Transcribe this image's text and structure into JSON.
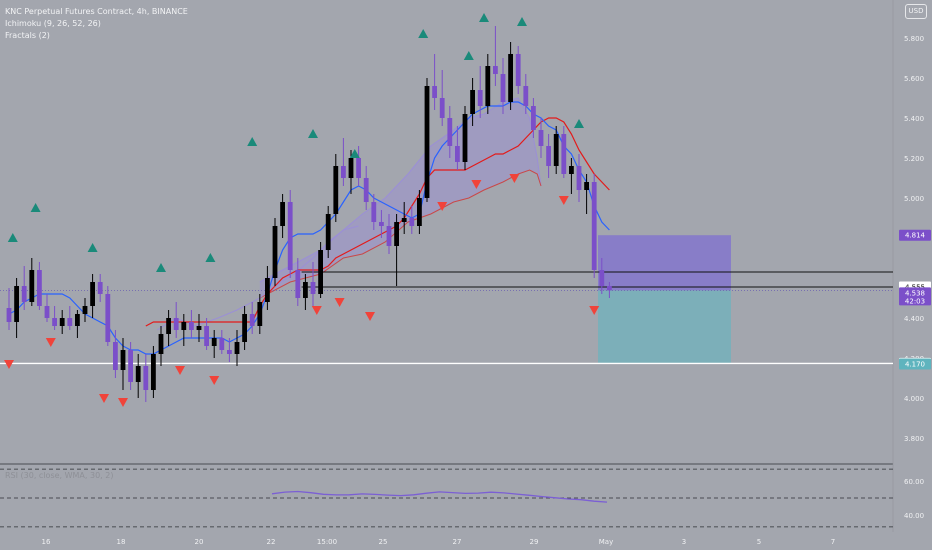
{
  "legend": {
    "symbol": "KNC Perpetual Futures Contract, 4h, BINANCE",
    "ichimoku": "Ichimoku (9, 26, 52, 26)",
    "fractals": "Fractals (2)"
  },
  "currency_button": "USD",
  "colors": {
    "background": "#a3a6ae",
    "bull_candle": "#000000",
    "bear_candle": "#7b4fc9",
    "tenkan": "#2962ff",
    "kijun": "#e31a1a",
    "cloud": "#9b8fd6",
    "fractal_up": "#1a8a7a",
    "fractal_down": "#f0433a",
    "rsi": "#7b5fd4",
    "stop_zone": "#7f6fd0",
    "target_zone": "#6fb2bc"
  },
  "chart_data": {
    "type": "candlestick",
    "ylim": [
      3.72,
      5.96
    ],
    "y_ticks": [
      "5.800",
      "5.600",
      "5.400",
      "5.200",
      "5.000",
      "4.400",
      "4.200",
      "4.000",
      "3.800"
    ],
    "x_ticks": [
      "16",
      "18",
      "20",
      "22",
      "15:00",
      "25",
      "27",
      "29",
      "May",
      "3",
      "5",
      "7"
    ],
    "price_labels": [
      {
        "text": "4.814",
        "value": 4.814,
        "color": "#7b4fc9"
      },
      {
        "text": "4.555",
        "value": 4.555,
        "color": "#ffffff"
      },
      {
        "text": "4.538",
        "sub": "42:03",
        "value": 4.538,
        "color": "#7b4fc9"
      },
      {
        "text": "4.173",
        "value": 4.173,
        "color": "#ffffff"
      },
      {
        "text": "4.170",
        "value": 4.17,
        "color": "#5fb4be"
      }
    ],
    "horizontal_lines": [
      4.173,
      4.555,
      4.63
    ],
    "rsi": {
      "label": "RSI (30, close, WMA, 30, 2)",
      "ticks": [
        "60.00",
        "40.00"
      ],
      "ylim": [
        30,
        70
      ],
      "levels": [
        67,
        50,
        33
      ],
      "values": [
        52.5,
        53.5,
        53.8,
        53.1,
        52.2,
        51.8,
        51.9,
        52.4,
        52.1,
        51.7,
        51.4,
        51.9,
        52.8,
        53.6,
        53.2,
        52.7,
        52.9,
        53.4,
        53.0,
        52.3,
        51.6,
        50.8,
        50.1,
        49.4,
        49.0,
        48.1,
        47.6
      ]
    },
    "candles": [
      [
        4.45,
        4.55,
        4.34,
        4.38
      ],
      [
        4.38,
        4.6,
        4.3,
        4.56
      ],
      [
        4.56,
        4.66,
        4.44,
        4.48
      ],
      [
        4.48,
        4.7,
        4.46,
        4.64
      ],
      [
        4.64,
        4.68,
        4.44,
        4.46
      ],
      [
        4.46,
        4.52,
        4.38,
        4.4
      ],
      [
        4.4,
        4.46,
        4.34,
        4.36
      ],
      [
        4.36,
        4.44,
        4.32,
        4.4
      ],
      [
        4.4,
        4.46,
        4.34,
        4.36
      ],
      [
        4.36,
        4.44,
        4.3,
        4.42
      ],
      [
        4.42,
        4.5,
        4.38,
        4.46
      ],
      [
        4.46,
        4.62,
        4.4,
        4.58
      ],
      [
        4.58,
        4.62,
        4.48,
        4.52
      ],
      [
        4.52,
        4.56,
        4.26,
        4.28
      ],
      [
        4.28,
        4.34,
        4.1,
        4.14
      ],
      [
        4.14,
        4.3,
        4.04,
        4.24
      ],
      [
        4.24,
        4.28,
        4.04,
        4.08
      ],
      [
        4.08,
        4.22,
        4.0,
        4.16
      ],
      [
        4.16,
        4.22,
        3.98,
        4.04
      ],
      [
        4.04,
        4.26,
        4.0,
        4.22
      ],
      [
        4.22,
        4.36,
        4.16,
        4.32
      ],
      [
        4.32,
        4.44,
        4.26,
        4.4
      ],
      [
        4.4,
        4.48,
        4.3,
        4.34
      ],
      [
        4.34,
        4.42,
        4.26,
        4.38
      ],
      [
        4.38,
        4.44,
        4.3,
        4.34
      ],
      [
        4.34,
        4.42,
        4.28,
        4.36
      ],
      [
        4.36,
        4.4,
        4.24,
        4.26
      ],
      [
        4.26,
        4.34,
        4.2,
        4.3
      ],
      [
        4.3,
        4.34,
        4.22,
        4.24
      ],
      [
        4.24,
        4.3,
        4.18,
        4.22
      ],
      [
        4.22,
        4.34,
        4.16,
        4.28
      ],
      [
        4.28,
        4.46,
        4.24,
        4.42
      ],
      [
        4.42,
        4.48,
        4.32,
        4.36
      ],
      [
        4.36,
        4.52,
        4.32,
        4.48
      ],
      [
        4.48,
        4.66,
        4.44,
        4.6
      ],
      [
        4.6,
        4.9,
        4.56,
        4.86
      ],
      [
        4.86,
        5.02,
        4.8,
        4.98
      ],
      [
        4.98,
        5.04,
        4.6,
        4.64
      ],
      [
        4.64,
        4.7,
        4.46,
        4.5
      ],
      [
        4.5,
        4.62,
        4.44,
        4.58
      ],
      [
        4.58,
        4.68,
        4.46,
        4.52
      ],
      [
        4.52,
        4.78,
        4.5,
        4.74
      ],
      [
        4.74,
        4.96,
        4.7,
        4.92
      ],
      [
        4.92,
        5.22,
        4.88,
        5.16
      ],
      [
        5.16,
        5.3,
        5.06,
        5.1
      ],
      [
        5.1,
        5.24,
        5.02,
        5.2
      ],
      [
        5.2,
        5.26,
        5.06,
        5.1
      ],
      [
        5.1,
        5.16,
        4.94,
        4.98
      ],
      [
        4.98,
        5.02,
        4.84,
        4.88
      ],
      [
        4.88,
        4.94,
        4.8,
        4.86
      ],
      [
        4.86,
        4.92,
        4.72,
        4.76
      ],
      [
        4.76,
        4.92,
        4.56,
        4.88
      ],
      [
        4.88,
        4.98,
        4.82,
        4.9
      ],
      [
        4.9,
        4.96,
        4.82,
        4.86
      ],
      [
        4.86,
        5.04,
        4.82,
        5.0
      ],
      [
        5.0,
        5.6,
        4.98,
        5.56
      ],
      [
        5.56,
        5.72,
        5.44,
        5.5
      ],
      [
        5.5,
        5.64,
        5.36,
        5.4
      ],
      [
        5.4,
        5.46,
        5.2,
        5.26
      ],
      [
        5.26,
        5.36,
        5.14,
        5.18
      ],
      [
        5.18,
        5.46,
        5.14,
        5.42
      ],
      [
        5.42,
        5.6,
        5.36,
        5.54
      ],
      [
        5.54,
        5.66,
        5.4,
        5.46
      ],
      [
        5.46,
        5.72,
        5.42,
        5.66
      ],
      [
        5.66,
        5.86,
        5.56,
        5.62
      ],
      [
        5.62,
        5.7,
        5.42,
        5.48
      ],
      [
        5.48,
        5.78,
        5.44,
        5.72
      ],
      [
        5.72,
        5.76,
        5.52,
        5.56
      ],
      [
        5.56,
        5.62,
        5.42,
        5.46
      ],
      [
        5.46,
        5.5,
        5.3,
        5.34
      ],
      [
        5.34,
        5.4,
        5.2,
        5.26
      ],
      [
        5.26,
        5.32,
        5.1,
        5.16
      ],
      [
        5.16,
        5.36,
        5.12,
        5.32
      ],
      [
        5.32,
        5.36,
        5.1,
        5.12
      ],
      [
        5.12,
        5.2,
        5.02,
        5.16
      ],
      [
        5.16,
        5.22,
        4.98,
        5.04
      ],
      [
        5.04,
        5.12,
        4.92,
        5.08
      ],
      [
        5.08,
        5.12,
        4.6,
        4.64
      ],
      [
        4.64,
        4.7,
        4.52,
        4.56
      ],
      [
        4.56,
        4.58,
        4.5,
        4.538
      ]
    ],
    "tenkan": [
      4.42,
      4.44,
      4.48,
      4.5,
      4.52,
      4.52,
      4.52,
      4.52,
      4.5,
      4.46,
      4.42,
      4.4,
      4.38,
      4.36,
      4.3,
      4.26,
      4.24,
      4.24,
      4.22,
      4.22,
      4.24,
      4.26,
      4.28,
      4.3,
      4.3,
      4.3,
      4.3,
      4.3,
      4.3,
      4.28,
      4.3,
      4.32,
      4.36,
      4.42,
      4.52,
      4.64,
      4.74,
      4.8,
      4.82,
      4.82,
      4.82,
      4.84,
      4.88,
      4.92,
      4.98,
      5.04,
      5.06,
      5.04,
      5.0,
      4.98,
      4.96,
      4.94,
      4.92,
      4.9,
      4.92,
      5.08,
      5.2,
      5.26,
      5.3,
      5.34,
      5.38,
      5.42,
      5.44,
      5.46,
      5.46,
      5.46,
      5.48,
      5.48,
      5.46,
      5.42,
      5.4,
      5.36,
      5.34,
      5.26,
      5.22,
      5.14,
      5.08,
      4.96,
      4.88,
      4.84
    ],
    "kijun": [
      null,
      null,
      null,
      null,
      null,
      null,
      null,
      null,
      null,
      null,
      null,
      null,
      null,
      null,
      null,
      null,
      null,
      null,
      4.36,
      4.38,
      4.38,
      4.38,
      4.38,
      4.38,
      4.38,
      4.38,
      4.38,
      4.38,
      4.38,
      4.38,
      4.38,
      4.38,
      4.38,
      4.46,
      4.52,
      4.56,
      4.6,
      4.62,
      4.64,
      4.64,
      4.64,
      4.64,
      4.66,
      4.7,
      4.72,
      4.74,
      4.76,
      4.78,
      4.8,
      4.82,
      4.84,
      4.86,
      4.9,
      4.96,
      5.02,
      5.1,
      5.14,
      5.14,
      5.14,
      5.14,
      5.14,
      5.16,
      5.18,
      5.2,
      5.22,
      5.22,
      5.24,
      5.26,
      5.3,
      5.34,
      5.38,
      5.4,
      5.4,
      5.38,
      5.32,
      5.24,
      5.18,
      5.12,
      5.08,
      5.04
    ],
    "lagging_span": [
      [
        39,
        4.34
      ],
      [
        44,
        4.4
      ],
      [
        49,
        4.36
      ],
      [
        55,
        4.4
      ],
      [
        60,
        4.44
      ],
      [
        66,
        4.5
      ],
      [
        70,
        4.56
      ],
      [
        75,
        4.62
      ],
      [
        80,
        4.7
      ],
      [
        84,
        4.78
      ],
      [
        88,
        4.84
      ],
      [
        92,
        4.86
      ]
    ],
    "cloud_span_a": [
      [
        66,
        4.58
      ],
      [
        74,
        4.66
      ],
      [
        82,
        4.74
      ],
      [
        88,
        4.84
      ],
      [
        93,
        4.92
      ],
      [
        99,
        5.0
      ],
      [
        105,
        5.12
      ],
      [
        111,
        5.26
      ],
      [
        117,
        5.34
      ],
      [
        121,
        5.4
      ],
      [
        125,
        5.42
      ],
      [
        130,
        5.48
      ],
      [
        134,
        5.5
      ],
      [
        137,
        5.4
      ],
      [
        139,
        5.2
      ],
      [
        140,
        5.06
      ]
    ],
    "cloud_span_b": [
      [
        66,
        4.5
      ],
      [
        74,
        4.58
      ],
      [
        82,
        4.62
      ],
      [
        88,
        4.7
      ],
      [
        93,
        4.72
      ],
      [
        99,
        4.78
      ],
      [
        105,
        4.88
      ],
      [
        111,
        4.92
      ],
      [
        117,
        4.98
      ],
      [
        121,
        5.0
      ],
      [
        125,
        5.04
      ],
      [
        130,
        5.08
      ],
      [
        134,
        5.12
      ],
      [
        137,
        5.14
      ],
      [
        139,
        5.12
      ],
      [
        140,
        5.06
      ]
    ],
    "fractals_up": [
      [
        1,
        4.8
      ],
      [
        7,
        4.95
      ],
      [
        22,
        4.75
      ],
      [
        40,
        4.65
      ],
      [
        53,
        4.7
      ],
      [
        64,
        5.28
      ],
      [
        80,
        5.32
      ],
      [
        91,
        5.22
      ],
      [
        109,
        5.82
      ],
      [
        121,
        5.71
      ],
      [
        125,
        5.9
      ],
      [
        135,
        5.88
      ],
      [
        150,
        5.37
      ]
    ],
    "fractals_down": [
      [
        0,
        4.17
      ],
      [
        11,
        4.28
      ],
      [
        25,
        4.0
      ],
      [
        30,
        3.98
      ],
      [
        45,
        4.14
      ],
      [
        54,
        4.09
      ],
      [
        81,
        4.44
      ],
      [
        87,
        4.48
      ],
      [
        95,
        4.41
      ],
      [
        114,
        4.96
      ],
      [
        123,
        5.07
      ],
      [
        133,
        5.1
      ],
      [
        146,
        4.99
      ],
      [
        154,
        4.44
      ]
    ],
    "position": {
      "entry": 4.538,
      "stop": 4.814,
      "target": 4.17,
      "start_bar": 155,
      "end_bar": 190
    }
  }
}
